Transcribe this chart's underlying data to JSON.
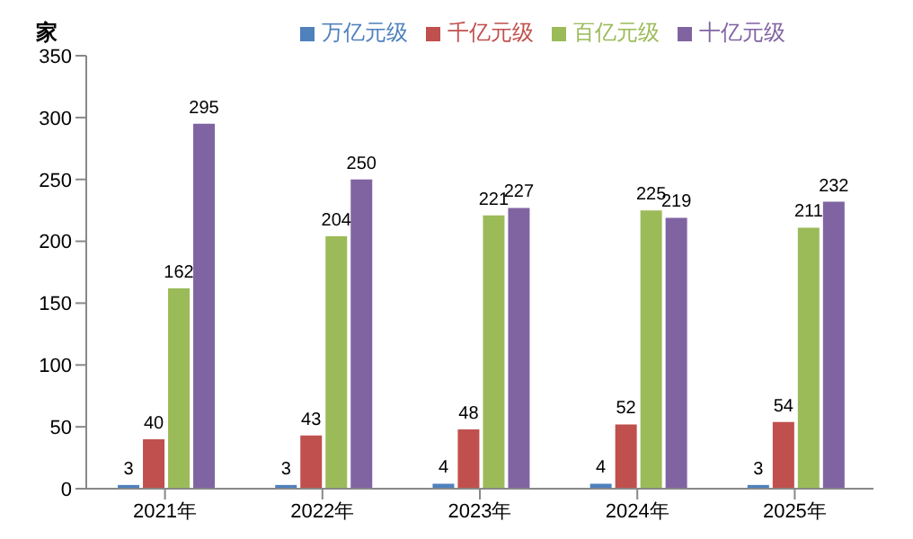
{
  "chart_data": {
    "type": "bar",
    "ylabel": "家",
    "categories": [
      "2021年",
      "2022年",
      "2023年",
      "2024年",
      "2025年"
    ],
    "series": [
      {
        "name": "万亿元级",
        "color": "#4f81bd",
        "values": [
          3,
          3,
          4,
          4,
          3
        ]
      },
      {
        "name": "千亿元级",
        "color": "#c0504d",
        "values": [
          40,
          43,
          48,
          52,
          54
        ]
      },
      {
        "name": "百亿元级",
        "color": "#9bbb59",
        "values": [
          162,
          204,
          221,
          225,
          211
        ]
      },
      {
        "name": "十亿元级",
        "color": "#8064a2",
        "values": [
          295,
          250,
          227,
          219,
          232
        ]
      }
    ],
    "ylim": [
      0,
      350
    ],
    "yticks": [
      0,
      50,
      100,
      150,
      200,
      250,
      300,
      350
    ],
    "grid": false,
    "legend": "top",
    "data_labels": true
  }
}
